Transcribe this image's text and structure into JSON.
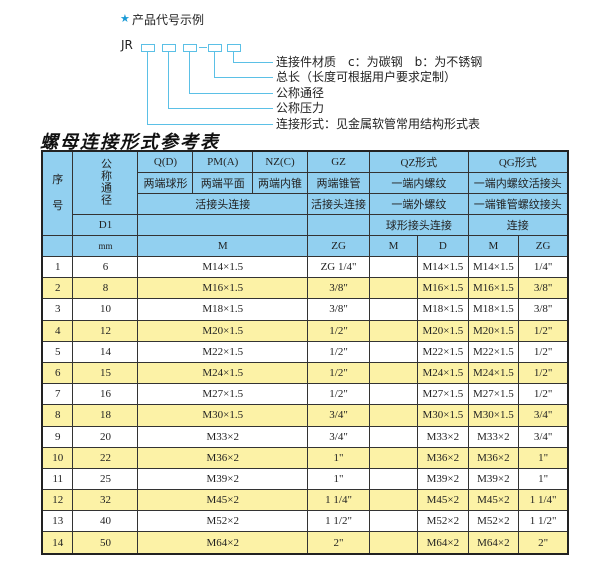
{
  "example": {
    "star_icon": "star-icon",
    "title": "产品代号示例",
    "prefix": "JR",
    "labels": [
      "连接件材质　c：为碳钢　b：为不锈钢",
      "总长（长度可根据用户要求定制）",
      "公称通径",
      "公称压力",
      "连接形式：见金属软管常用结构形式表"
    ]
  },
  "table_title": "螺母连接形式参考表",
  "header": {
    "seq": "序\n\n号",
    "dn": "公称通径",
    "d1": "D1",
    "mm": "mm",
    "qd": "Q(D)",
    "pm": "PM(A)",
    "nz": "NZ(C)",
    "gz": "GZ",
    "qz": "QZ形式",
    "qg": "QG形式",
    "qd2": "两端球形",
    "pm2": "两端平面",
    "nz2": "两端内锥",
    "gz2": "两端锥管",
    "qz2": "一端内螺纹",
    "qg2": "一端内螺纹活接头",
    "huo": "活接头连接",
    "gz3": "活接头连接",
    "qz3": "一端外螺纹",
    "qg3": "一端锥管螺纹接头",
    "qz4": "球形接头连接",
    "qg4": "连接",
    "m": "M",
    "zg": "ZG",
    "qzm": "M",
    "qzd": "D",
    "qgm": "M",
    "qgzg": "ZG"
  },
  "rows": [
    {
      "no": "1",
      "dn": "6",
      "m": "M14×1.5",
      "zg": "ZG 1/4\"",
      "qzm": "",
      "qzd": "M14×1.5",
      "qgm": "M14×1.5",
      "qgzg": "1/4\""
    },
    {
      "no": "2",
      "dn": "8",
      "m": "M16×1.5",
      "zg": "3/8\"",
      "qzm": "",
      "qzd": "M16×1.5",
      "qgm": "M16×1.5",
      "qgzg": "3/8\""
    },
    {
      "no": "3",
      "dn": "10",
      "m": "M18×1.5",
      "zg": "3/8\"",
      "qzm": "",
      "qzd": "M18×1.5",
      "qgm": "M18×1.5",
      "qgzg": "3/8\""
    },
    {
      "no": "4",
      "dn": "12",
      "m": "M20×1.5",
      "zg": "1/2\"",
      "qzm": "",
      "qzd": "M20×1.5",
      "qgm": "M20×1.5",
      "qgzg": "1/2\""
    },
    {
      "no": "5",
      "dn": "14",
      "m": "M22×1.5",
      "zg": "1/2\"",
      "qzm": "",
      "qzd": "M22×1.5",
      "qgm": "M22×1.5",
      "qgzg": "1/2\""
    },
    {
      "no": "6",
      "dn": "15",
      "m": "M24×1.5",
      "zg": "1/2\"",
      "qzm": "",
      "qzd": "M24×1.5",
      "qgm": "M24×1.5",
      "qgzg": "1/2\""
    },
    {
      "no": "7",
      "dn": "16",
      "m": "M27×1.5",
      "zg": "1/2\"",
      "qzm": "",
      "qzd": "M27×1.5",
      "qgm": "M27×1.5",
      "qgzg": "1/2\""
    },
    {
      "no": "8",
      "dn": "18",
      "m": "M30×1.5",
      "zg": "3/4\"",
      "qzm": "",
      "qzd": "M30×1.5",
      "qgm": "M30×1.5",
      "qgzg": "3/4\""
    },
    {
      "no": "9",
      "dn": "20",
      "m": "M33×2",
      "zg": "3/4\"",
      "qzm": "",
      "qzd": "M33×2",
      "qgm": "M33×2",
      "qgzg": "3/4\""
    },
    {
      "no": "10",
      "dn": "22",
      "m": "M36×2",
      "zg": "1\"",
      "qzm": "",
      "qzd": "M36×2",
      "qgm": "M36×2",
      "qgzg": "1\""
    },
    {
      "no": "11",
      "dn": "25",
      "m": "M39×2",
      "zg": "1\"",
      "qzm": "",
      "qzd": "M39×2",
      "qgm": "M39×2",
      "qgzg": "1\""
    },
    {
      "no": "12",
      "dn": "32",
      "m": "M45×2",
      "zg": "1 1/4\"",
      "qzm": "",
      "qzd": "M45×2",
      "qgm": "M45×2",
      "qgzg": "1 1/4\""
    },
    {
      "no": "13",
      "dn": "40",
      "m": "M52×2",
      "zg": "1 1/2\"",
      "qzm": "",
      "qzd": "M52×2",
      "qgm": "M52×2",
      "qgzg": "1 1/2\""
    },
    {
      "no": "14",
      "dn": "50",
      "m": "M64×2",
      "zg": "2\"",
      "qzm": "",
      "qzd": "M64×2",
      "qgm": "M64×2",
      "qgzg": "2\""
    }
  ],
  "colors": {
    "header": "#92d0f0",
    "stripe": "#fcf2a6",
    "accent": "#5bc0e6"
  }
}
